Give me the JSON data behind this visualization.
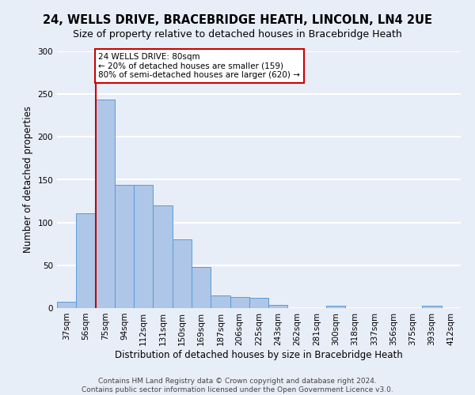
{
  "title1": "24, WELLS DRIVE, BRACEBRIDGE HEATH, LINCOLN, LN4 2UE",
  "title2": "Size of property relative to detached houses in Bracebridge Heath",
  "xlabel": "Distribution of detached houses by size in Bracebridge Heath",
  "ylabel": "Number of detached properties",
  "categories": [
    "37sqm",
    "56sqm",
    "75sqm",
    "94sqm",
    "112sqm",
    "131sqm",
    "150sqm",
    "169sqm",
    "187sqm",
    "206sqm",
    "225sqm",
    "243sqm",
    "262sqm",
    "281sqm",
    "300sqm",
    "318sqm",
    "337sqm",
    "356sqm",
    "375sqm",
    "393sqm",
    "412sqm"
  ],
  "values": [
    7,
    111,
    244,
    144,
    144,
    120,
    80,
    48,
    15,
    13,
    12,
    4,
    0,
    0,
    3,
    0,
    0,
    0,
    0,
    3,
    0
  ],
  "bar_color": "#aec6e8",
  "bar_edge_color": "#5b9bd5",
  "vline_index": 2,
  "vline_color": "#cc0000",
  "annotation_line1": "24 WELLS DRIVE: 80sqm",
  "annotation_line2": "← 20% of detached houses are smaller (159)",
  "annotation_line3": "80% of semi-detached houses are larger (620) →",
  "annotation_box_color": "#ffffff",
  "annotation_box_edge": "#cc0000",
  "footer1": "Contains HM Land Registry data © Crown copyright and database right 2024.",
  "footer2": "Contains public sector information licensed under the Open Government Licence v3.0.",
  "ylim": [
    0,
    300
  ],
  "yticks": [
    0,
    50,
    100,
    150,
    200,
    250,
    300
  ],
  "bg_color": "#e8eef8",
  "grid_color": "#ffffff",
  "title1_fontsize": 10.5,
  "title2_fontsize": 9.0,
  "axis_label_fontsize": 8.5,
  "tick_fontsize": 7.5,
  "footer_fontsize": 6.5
}
